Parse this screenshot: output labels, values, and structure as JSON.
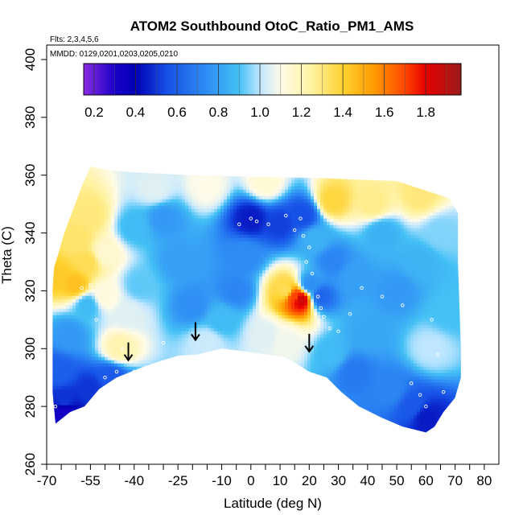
{
  "chart_data": {
    "type": "heatmap",
    "title": "ATOM2 Southbound OtoC_Ratio_PM1_AMS",
    "subtitle_flights": "Flts: 2,3,4,5,6",
    "subtitle_dates": "MMDD: 0129,0201,0203,0205,0210",
    "xlabel": "Latitude (deg N)",
    "ylabel": "Theta (C)",
    "xlim": [
      -70,
      85
    ],
    "ylim": [
      260,
      405
    ],
    "x_ticks": [
      -70,
      -65,
      -60,
      -55,
      -50,
      -45,
      -40,
      -35,
      -30,
      -25,
      -20,
      -15,
      -10,
      -5,
      0,
      5,
      10,
      15,
      20,
      25,
      30,
      35,
      40,
      45,
      50,
      55,
      60,
      65,
      70,
      75,
      80
    ],
    "x_labels": [
      "-70",
      "",
      "",
      "-55",
      "",
      "",
      "-40",
      "",
      "",
      "-25",
      "",
      "",
      "-10",
      "",
      "0",
      "",
      "10",
      "",
      "20",
      "",
      "30",
      "",
      "40",
      "",
      "50",
      "",
      "60",
      "",
      "70",
      "",
      "80"
    ],
    "y_ticks": [
      260,
      280,
      300,
      320,
      340,
      360,
      380,
      400
    ],
    "y_labels": [
      "260",
      "280",
      "300",
      "320",
      "340",
      "360",
      "380",
      "400"
    ],
    "colorbar": {
      "min": 0.15,
      "max": 1.97,
      "ticks": [
        0.2,
        0.4,
        0.6,
        0.8,
        1.0,
        1.2,
        1.4,
        1.6,
        1.8
      ],
      "tick_labels": [
        "0.2",
        "0.4",
        "0.6",
        "0.8",
        "1.0",
        "1.2",
        "1.4",
        "1.6",
        "1.8"
      ],
      "stops": [
        {
          "v": 0.15,
          "color": "#8a2be2"
        },
        {
          "v": 0.3,
          "color": "#1a00c8"
        },
        {
          "v": 0.4,
          "color": "#0000b4"
        },
        {
          "v": 0.55,
          "color": "#1650e6"
        },
        {
          "v": 0.75,
          "color": "#2f8ff5"
        },
        {
          "v": 0.9,
          "color": "#45c1f5"
        },
        {
          "v": 1.0,
          "color": "#bfe6ff"
        },
        {
          "v": 1.1,
          "color": "#fffbe8"
        },
        {
          "v": 1.25,
          "color": "#fff2a0"
        },
        {
          "v": 1.4,
          "color": "#ffd230"
        },
        {
          "v": 1.55,
          "color": "#ff9b00"
        },
        {
          "v": 1.7,
          "color": "#ff4500"
        },
        {
          "v": 1.8,
          "color": "#e60000"
        },
        {
          "v": 1.97,
          "color": "#9b1c1c"
        }
      ]
    },
    "domain_bottom": [
      [
        -67,
        274
      ],
      [
        -62,
        278
      ],
      [
        -57,
        280
      ],
      [
        -52,
        286
      ],
      [
        -46,
        290
      ],
      [
        -41,
        292
      ],
      [
        -36,
        294
      ],
      [
        -30,
        296
      ],
      [
        -25,
        297.5
      ],
      [
        -18,
        298
      ],
      [
        -10,
        300
      ],
      [
        -2,
        299
      ],
      [
        5,
        298
      ],
      [
        12,
        297
      ],
      [
        20,
        292
      ],
      [
        26,
        290
      ],
      [
        31,
        285
      ],
      [
        37,
        280
      ],
      [
        45,
        276
      ],
      [
        52,
        273
      ],
      [
        60,
        271
      ],
      [
        63,
        273
      ],
      [
        66,
        278
      ],
      [
        70,
        283
      ],
      [
        72,
        290
      ]
    ],
    "domain_top": [
      [
        72,
        300
      ],
      [
        71,
        330
      ],
      [
        71,
        347
      ],
      [
        68,
        352
      ],
      [
        62,
        354
      ],
      [
        56,
        356
      ],
      [
        50,
        358
      ],
      [
        36,
        358.5
      ],
      [
        25,
        359
      ],
      [
        0,
        359.5
      ],
      [
        -20,
        360
      ],
      [
        -30,
        360.5
      ],
      [
        -40,
        361
      ],
      [
        -50,
        362
      ],
      [
        -55,
        363
      ],
      [
        -58,
        356
      ],
      [
        -61,
        348
      ],
      [
        -64,
        340
      ],
      [
        -66,
        333
      ],
      [
        -67.5,
        328
      ],
      [
        -68,
        320
      ],
      [
        -68,
        300
      ],
      [
        -68,
        285
      ]
    ],
    "colorfield_points": [
      [
        -66,
        325,
        1.42
      ],
      [
        -60,
        322,
        1.45
      ],
      [
        -56,
        330,
        1.35
      ],
      [
        -59,
        338,
        1.32
      ],
      [
        -55,
        346,
        1.3
      ],
      [
        -50,
        333,
        1.15
      ],
      [
        -50,
        318,
        1.12
      ],
      [
        -56,
        315,
        0.88
      ],
      [
        -62,
        305,
        0.78
      ],
      [
        -66,
        292,
        0.6
      ],
      [
        -64,
        282,
        0.5
      ],
      [
        -64,
        278,
        0.32
      ],
      [
        -55,
        286,
        0.5
      ],
      [
        -48,
        290,
        0.58
      ],
      [
        -45,
        300,
        1.22
      ],
      [
        -42,
        312,
        1.05
      ],
      [
        -38,
        322,
        0.92
      ],
      [
        -40,
        342,
        0.88
      ],
      [
        -30,
        345,
        0.78
      ],
      [
        -25,
        330,
        0.8
      ],
      [
        -20,
        315,
        0.75
      ],
      [
        -15,
        302,
        1.02
      ],
      [
        -10,
        310,
        0.88
      ],
      [
        -5,
        320,
        0.72
      ],
      [
        -2,
        332,
        0.74
      ],
      [
        0,
        345,
        0.45
      ],
      [
        10,
        343,
        0.52
      ],
      [
        18,
        346,
        0.55
      ],
      [
        -33,
        355,
        1.05
      ],
      [
        -15,
        356,
        1.1
      ],
      [
        5,
        357,
        1.14
      ],
      [
        28,
        351,
        1.38
      ],
      [
        42,
        350,
        1.28
      ],
      [
        58,
        353,
        1.3
      ],
      [
        12,
        320,
        1.35
      ],
      [
        15,
        318,
        1.7
      ],
      [
        17,
        317,
        1.85
      ],
      [
        20,
        322,
        0.75
      ],
      [
        24,
        318,
        0.62
      ],
      [
        28,
        330,
        0.72
      ],
      [
        22,
        338,
        0.85
      ],
      [
        35,
        325,
        0.8
      ],
      [
        45,
        340,
        0.85
      ],
      [
        50,
        320,
        0.78
      ],
      [
        58,
        330,
        0.86
      ],
      [
        65,
        340,
        0.95
      ],
      [
        68,
        312,
        0.9
      ],
      [
        62,
        300,
        1.0
      ],
      [
        40,
        305,
        0.82
      ],
      [
        35,
        292,
        0.68
      ],
      [
        48,
        285,
        0.72
      ],
      [
        55,
        280,
        0.58
      ],
      [
        60,
        276,
        0.45
      ],
      [
        28,
        298,
        0.88
      ],
      [
        5,
        305,
        1.05
      ],
      [
        12,
        303,
        1.08
      ]
    ],
    "arrows": [
      [
        -42,
        296
      ],
      [
        -19,
        303
      ],
      [
        20,
        299
      ]
    ],
    "sample_markers": [
      [
        -67,
        280
      ],
      [
        -64,
        275
      ],
      [
        -58,
        321
      ],
      [
        -55,
        322
      ],
      [
        -53,
        310
      ],
      [
        -46,
        292
      ],
      [
        -44,
        300
      ],
      [
        -40,
        292
      ],
      [
        -30,
        302
      ],
      [
        -50,
        290
      ],
      [
        -4,
        343
      ],
      [
        0,
        345
      ],
      [
        2,
        344
      ],
      [
        6,
        343
      ],
      [
        12,
        346
      ],
      [
        15,
        341
      ],
      [
        17,
        345
      ],
      [
        18,
        339
      ],
      [
        20,
        335
      ],
      [
        19,
        330
      ],
      [
        21,
        326
      ],
      [
        23,
        318
      ],
      [
        24,
        314
      ],
      [
        25,
        311
      ],
      [
        27,
        307
      ],
      [
        30,
        306
      ],
      [
        34,
        312
      ],
      [
        52,
        315
      ],
      [
        55,
        288
      ],
      [
        58,
        284
      ],
      [
        60,
        280
      ],
      [
        62,
        310
      ],
      [
        64,
        298
      ],
      [
        66,
        285
      ],
      [
        45,
        318
      ],
      [
        38,
        321
      ]
    ]
  }
}
